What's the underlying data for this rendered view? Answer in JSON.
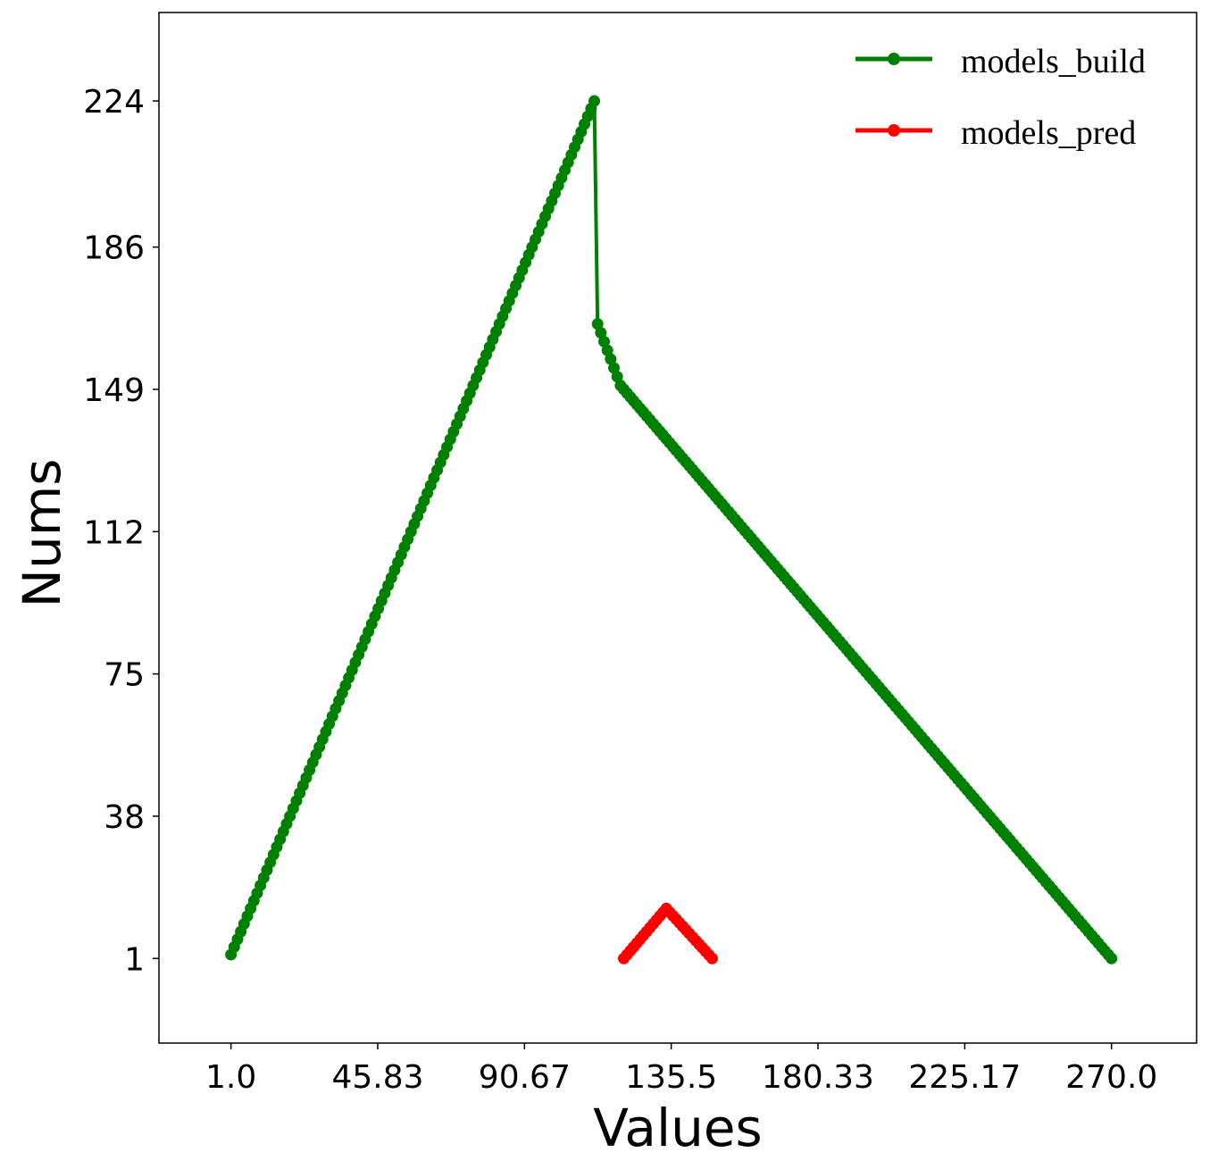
{
  "chart_data": {
    "type": "line",
    "title": "",
    "xlabel": "Values",
    "ylabel": "Nums",
    "xlim": [
      -21,
      296
    ],
    "ylim": [
      -21,
      247
    ],
    "xticks": [
      1.0,
      45.83,
      90.67,
      135.5,
      180.33,
      225.17,
      270.0
    ],
    "xtick_labels": [
      "1.0",
      "45.83",
      "90.67",
      "135.5",
      "180.33",
      "225.17",
      "270.0"
    ],
    "yticks": [
      1,
      38,
      75,
      112,
      149,
      186,
      224
    ],
    "ytick_labels": [
      "1",
      "38",
      "75",
      "112",
      "149",
      "186",
      "224"
    ],
    "grid": false,
    "legend": {
      "position": "top-right"
    },
    "series": [
      {
        "name": "models_build",
        "color": "#008000",
        "segments": [
          {
            "x_from": 1,
            "x_to": 112,
            "y_from": 2,
            "y_to": 224
          },
          {
            "x_from": 113,
            "y_from": 166,
            "x_to": 113,
            "y_to": 166
          },
          {
            "x_from": 113,
            "x_to": 120,
            "y_from": 166,
            "y_to": 150
          },
          {
            "x_from": 120,
            "x_to": 270,
            "y_from": 150,
            "y_to": 1
          }
        ]
      },
      {
        "name": "models_pred",
        "color": "#ff0000",
        "segments": [
          {
            "x_from": 121,
            "x_to": 134,
            "y_from": 1,
            "y_to": 14
          },
          {
            "x_from": 134,
            "x_to": 148,
            "y_from": 14,
            "y_to": 1
          }
        ]
      }
    ]
  }
}
